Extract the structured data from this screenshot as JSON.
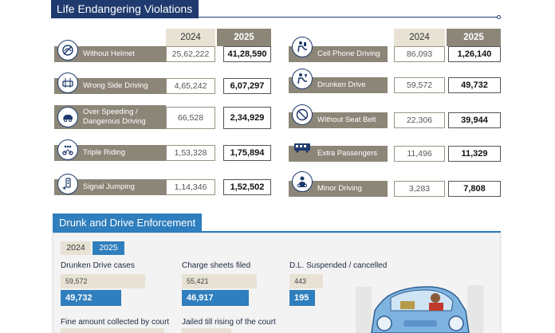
{
  "violations": {
    "title": "Life Endangering Violations",
    "year_2024": "2024",
    "year_2025": "2025",
    "left": [
      {
        "label": "Without Helmet",
        "v2024": "25,62,222",
        "v2025": "41,28,590",
        "icon": "helmet-icon"
      },
      {
        "label": "Wrong Side Driving",
        "v2024": "4,65,242",
        "v2025": "6,07,297",
        "icon": "wrong-side-icon"
      },
      {
        "label": "Over Speeding /\nDangerous Driving",
        "v2024": "66,528",
        "v2025": "2,34,929",
        "icon": "speeding-car-icon"
      },
      {
        "label": "Triple Riding",
        "v2024": "1,53,328",
        "v2025": "1,75,894",
        "icon": "triple-riding-icon"
      },
      {
        "label": "Signal Jumping",
        "v2024": "1,14,346",
        "v2025": "1,52,502",
        "icon": "signal-icon"
      }
    ],
    "right": [
      {
        "label": "Cell Phone Driving",
        "v2024": "86,093",
        "v2025": "1,26,140",
        "icon": "phone-driver-icon"
      },
      {
        "label": "Drunken Drive",
        "v2024": "59,572",
        "v2025": "49,732",
        "icon": "drunk-driver-icon"
      },
      {
        "label": "Without Seat Belt",
        "v2024": "22,306",
        "v2025": "39,944",
        "icon": "no-seatbelt-icon"
      },
      {
        "label": "Extra Passengers",
        "v2024": "11,496",
        "v2025": "11,329",
        "icon": "bus-icon"
      },
      {
        "label": "Minor Driving",
        "v2024": "3,283",
        "v2025": "7,808",
        "icon": "minor-icon"
      }
    ]
  },
  "enforcement": {
    "title": "Drunk and Drive Enforcement",
    "toggle_2024": "2024",
    "toggle_2025": "2025",
    "metrics": [
      {
        "label": "Drunken Drive cases",
        "v2024": "59,572",
        "v2025": "49,732"
      },
      {
        "label": "Charge sheets filed",
        "v2024": "55,421",
        "v2025": "46,917"
      },
      {
        "label": "D.L. Suspended / cancelled",
        "v2024": "443",
        "v2025": "195"
      }
    ],
    "bottom_labels": [
      "Fine amount collected by court",
      "Jailed till rising of the court"
    ]
  },
  "colors": {
    "navy": "#1e3a6e",
    "taupe": "#8c8678",
    "beige": "#e7e2d4",
    "blue": "#2f7ebd"
  }
}
